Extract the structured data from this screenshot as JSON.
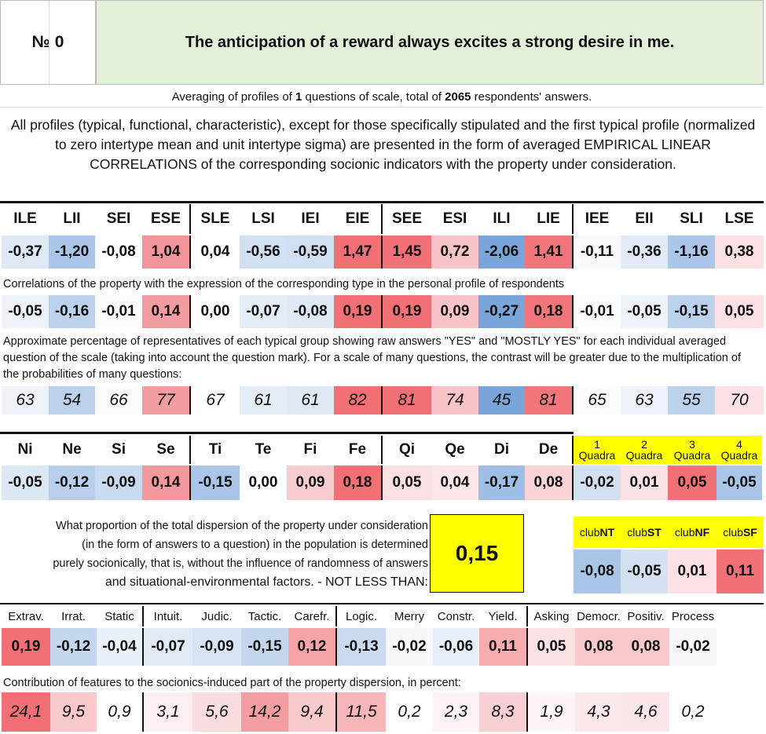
{
  "header": {
    "number_label": "№ 0",
    "title": "The anticipation of a reward always excites a strong desire in me."
  },
  "averaging": {
    "prefix": "Averaging of profiles of ",
    "questions": "1",
    "middle": " questions of scale, total of ",
    "respondents": "2065",
    "suffix": " respondents' answers."
  },
  "description": "All profiles (typical, functional, characteristic), except for those specifically stipulated and the first typical profile (normalized to zero intertype mean and unit intertype sigma) are presented in the form of averaged EMPIRICAL LINEAR CORRELATIONS of the corresponding socionic indicators with the property under consideration.",
  "types": {
    "labels": [
      "ILE",
      "LII",
      "SEI",
      "ESE",
      "SLE",
      "LSI",
      "IEI",
      "EIE",
      "SEE",
      "ESI",
      "ILI",
      "LIE",
      "IEE",
      "EII",
      "SLI",
      "LSE"
    ],
    "values": [
      "-0,37",
      "-1,20",
      "-0,08",
      "1,04",
      "0,04",
      "-0,56",
      "-0,59",
      "1,47",
      "1,45",
      "0,72",
      "-2,06",
      "1,41",
      "-0,11",
      "-0,36",
      "-1,16",
      "0,38"
    ],
    "colors": [
      "#dfe9f6",
      "#a9c5e8",
      "#ffffff",
      "#f2959b",
      "#ffffff",
      "#d1e0f2",
      "#d0dff1",
      "#f07076",
      "#f07278",
      "#f8c4c7",
      "#7aa5da",
      "#f1767b",
      "#f7f9fc",
      "#e1eaf6",
      "#abc6e9",
      "#fbe1e3"
    ]
  },
  "correlations": {
    "note": "Correlations of the property with the expression of the corresponding type in the personal profile of respondents",
    "values": [
      "-0,05",
      "-0,16",
      "-0,01",
      "0,14",
      "0,00",
      "-0,07",
      "-0,08",
      "0,19",
      "0,19",
      "0,09",
      "-0,27",
      "0,18",
      "-0,01",
      "-0,05",
      "-0,15",
      "0,05"
    ],
    "colors": [
      "#eef3fa",
      "#bcd2ec",
      "#fbfcfe",
      "#f39ca1",
      "#ffffff",
      "#e4ecf7",
      "#dfe9f6",
      "#f07076",
      "#f07076",
      "#f8c4c7",
      "#7aa5da",
      "#f1767b",
      "#fbfcfe",
      "#eef3fa",
      "#bcd2ec",
      "#fbe1e3"
    ]
  },
  "percentages": {
    "note": "Approximate percentage of representatives of each typical group showing raw answers \"YES\" and \"MOSTLY YES\" for each individual averaged question of the scale (taking into account the question mark). For a scale of many questions, the contrast will be greater due to the multiplication of the probabilities of many questions:",
    "values": [
      "63",
      "54",
      "66",
      "77",
      "67",
      "61",
      "61",
      "82",
      "81",
      "74",
      "45",
      "81",
      "65",
      "63",
      "55",
      "70"
    ],
    "colors": [
      "#eef3fa",
      "#bcd2ec",
      "#fbfcfe",
      "#f39ca1",
      "#ffffff",
      "#e4ecf7",
      "#dfe9f6",
      "#f07076",
      "#f07076",
      "#f8c4c7",
      "#7aa5da",
      "#f1767b",
      "#fbfcfe",
      "#eef3fa",
      "#bcd2ec",
      "#fbe1e3"
    ]
  },
  "functions": {
    "labels": [
      "Ni",
      "Ne",
      "Si",
      "Se",
      "Ti",
      "Te",
      "Fi",
      "Fe",
      "Qi",
      "Qe",
      "Di",
      "De"
    ],
    "values": [
      "-0,05",
      "-0,12",
      "-0,09",
      "0,14",
      "-0,15",
      "0,00",
      "0,09",
      "0,18",
      "0,05",
      "0,04",
      "-0,17",
      "0,08"
    ],
    "colors": [
      "#dde8f5",
      "#b7cfeb",
      "#c9daf0",
      "#f3999e",
      "#a9c5e8",
      "#ffffff",
      "#f9cdd0",
      "#f07076",
      "#fbe0e2",
      "#fce6e8",
      "#9fbee5",
      "#fad3d6"
    ]
  },
  "quadras": {
    "labels": [
      [
        "1",
        "Quadra"
      ],
      [
        "2",
        "Quadra"
      ],
      [
        "3",
        "Quadra"
      ],
      [
        "4",
        "Quadra"
      ]
    ],
    "values": [
      "-0,02",
      "0,01",
      "0,05",
      "-0,05"
    ],
    "colors": [
      "#d2e0f2",
      "#fbe3e5",
      "#f07076",
      "#a9c5e8"
    ]
  },
  "proportion": {
    "lines": [
      "What proportion of the total dispersion of the property under consideration",
      "(in the form of answers to a question) in the population is determined",
      "purely socionically, that is, without the influence of randomness of answers",
      "and situational-environmental factors. - NOT LESS THAN:"
    ],
    "value": "0,15"
  },
  "clubs": {
    "labels": [
      [
        "club",
        "NT"
      ],
      [
        "club",
        "ST"
      ],
      [
        "club",
        "NF"
      ],
      [
        "club",
        "SF"
      ]
    ],
    "values": [
      "-0,08",
      "-0,05",
      "0,01",
      "0,11"
    ],
    "colors": [
      "#a9c5e8",
      "#d3e1f2",
      "#fbe1e3",
      "#f07076"
    ]
  },
  "features": {
    "labels": [
      "Extrav.",
      "Irrat.",
      "Static",
      "Intuit.",
      "Judic.",
      "Tactic.",
      "Carefr.",
      "Logic.",
      "Merry",
      "Constr.",
      "Yield.",
      "Asking",
      "Democr.",
      "Positiv.",
      "Process"
    ],
    "values": [
      "0,19",
      "-0,12",
      "-0,04",
      "-0,07",
      "-0,09",
      "-0,15",
      "0,12",
      "-0,13",
      "-0,02",
      "-0,06",
      "0,11",
      "0,05",
      "0,08",
      "0,08",
      "-0,02"
    ],
    "colors": [
      "#f07076",
      "#c5d7ee",
      "#eaf1f9",
      "#e0e9f6",
      "#d8e4f4",
      "#c3d6ee",
      "#f6a4a8",
      "#cadbf0",
      "#f6f8fc",
      "#e6eef8",
      "#f7acb0",
      "#fbe3e5",
      "#f9c8cb",
      "#f9c8cb",
      "#f6f8fc"
    ]
  },
  "contribution": {
    "note": "Contribution of features to the socionics-induced part of the property dispersion, in percent:",
    "values": [
      "24,1",
      "9,5",
      "0,9",
      "3,1",
      "5,6",
      "14,2",
      "9,4",
      "11,5",
      "0,2",
      "2,3",
      "8,3",
      "1,9",
      "4,3",
      "4,6",
      "0,2"
    ],
    "colors": [
      "#f07076",
      "#f9c8cb",
      "#ffffff",
      "#fdeff0",
      "#fbdde0",
      "#f49ea3",
      "#f9c9cc",
      "#f7b6b9",
      "#ffffff",
      "#fdf3f4",
      "#f8cfd2",
      "#fef5f6",
      "#fce9ea",
      "#fbe6e7",
      "#ffffff"
    ]
  }
}
